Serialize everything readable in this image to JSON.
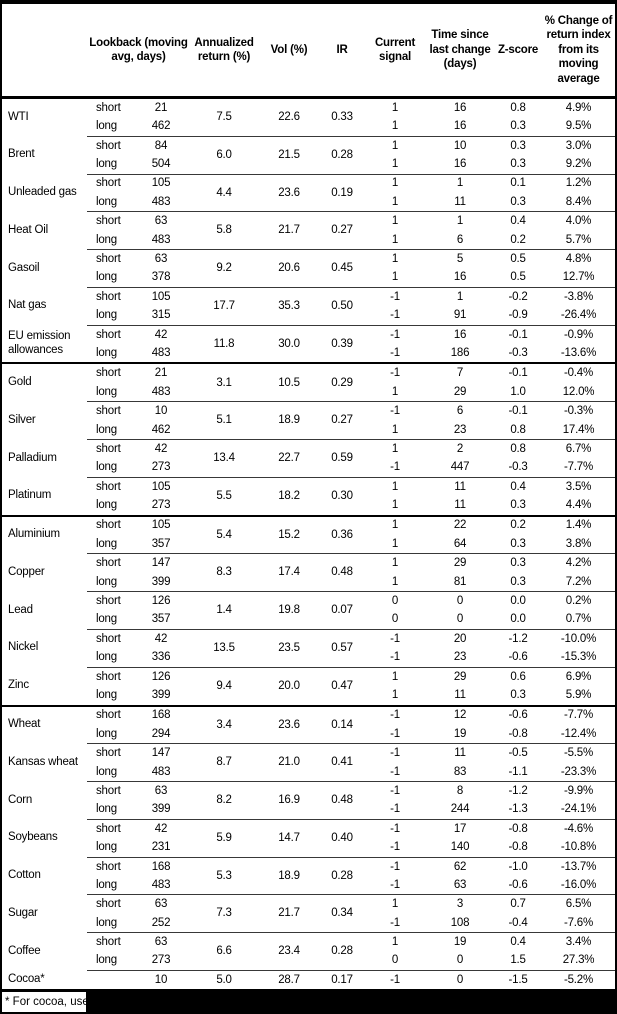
{
  "table": {
    "columns": [
      "",
      "Lookback (moving avg, days)",
      "Annualized return (%)",
      "Vol (%)",
      "IR",
      "Current signal",
      "Time since last change (days)",
      "Z-score",
      "% Change of return index from its moving average"
    ],
    "commodities": [
      {
        "name": "WTI",
        "group_start": false,
        "ann": "7.5",
        "vol": "22.6",
        "ir": "0.33",
        "legs": [
          {
            "pos": "short",
            "lookback": "21",
            "signal": "1",
            "time": "16",
            "z": "0.8",
            "pct": "4.9%"
          },
          {
            "pos": "long",
            "lookback": "462",
            "signal": "1",
            "time": "16",
            "z": "0.3",
            "pct": "9.5%"
          }
        ]
      },
      {
        "name": "Brent",
        "group_start": false,
        "ann": "6.0",
        "vol": "21.5",
        "ir": "0.28",
        "legs": [
          {
            "pos": "short",
            "lookback": "84",
            "signal": "1",
            "time": "10",
            "z": "0.3",
            "pct": "3.0%"
          },
          {
            "pos": "long",
            "lookback": "504",
            "signal": "1",
            "time": "16",
            "z": "0.3",
            "pct": "9.2%"
          }
        ]
      },
      {
        "name": "Unleaded gas",
        "group_start": false,
        "ann": "4.4",
        "vol": "23.6",
        "ir": "0.19",
        "legs": [
          {
            "pos": "short",
            "lookback": "105",
            "signal": "1",
            "time": "1",
            "z": "0.1",
            "pct": "1.2%"
          },
          {
            "pos": "long",
            "lookback": "483",
            "signal": "1",
            "time": "11",
            "z": "0.3",
            "pct": "8.4%"
          }
        ]
      },
      {
        "name": "Heat Oil",
        "group_start": false,
        "ann": "5.8",
        "vol": "21.7",
        "ir": "0.27",
        "legs": [
          {
            "pos": "short",
            "lookback": "63",
            "signal": "1",
            "time": "1",
            "z": "0.4",
            "pct": "4.0%"
          },
          {
            "pos": "long",
            "lookback": "483",
            "signal": "1",
            "time": "6",
            "z": "0.2",
            "pct": "5.7%"
          }
        ]
      },
      {
        "name": "Gasoil",
        "group_start": false,
        "ann": "9.2",
        "vol": "20.6",
        "ir": "0.45",
        "legs": [
          {
            "pos": "short",
            "lookback": "63",
            "signal": "1",
            "time": "5",
            "z": "0.5",
            "pct": "4.8%"
          },
          {
            "pos": "long",
            "lookback": "378",
            "signal": "1",
            "time": "16",
            "z": "0.5",
            "pct": "12.7%"
          }
        ]
      },
      {
        "name": "Nat gas",
        "group_start": false,
        "ann": "17.7",
        "vol": "35.3",
        "ir": "0.50",
        "legs": [
          {
            "pos": "short",
            "lookback": "105",
            "signal": "-1",
            "time": "1",
            "z": "-0.2",
            "pct": "-3.8%"
          },
          {
            "pos": "long",
            "lookback": "315",
            "signal": "-1",
            "time": "91",
            "z": "-0.9",
            "pct": "-26.4%"
          }
        ]
      },
      {
        "name": "EU emission allowances",
        "group_start": false,
        "ann": "11.8",
        "vol": "30.0",
        "ir": "0.39",
        "legs": [
          {
            "pos": "short",
            "lookback": "42",
            "signal": "-1",
            "time": "16",
            "z": "-0.1",
            "pct": "-0.9%"
          },
          {
            "pos": "long",
            "lookback": "483",
            "signal": "-1",
            "time": "186",
            "z": "-0.3",
            "pct": "-13.6%"
          }
        ]
      },
      {
        "name": "Gold",
        "group_start": true,
        "ann": "3.1",
        "vol": "10.5",
        "ir": "0.29",
        "legs": [
          {
            "pos": "short",
            "lookback": "21",
            "signal": "-1",
            "time": "7",
            "z": "-0.1",
            "pct": "-0.4%"
          },
          {
            "pos": "long",
            "lookback": "483",
            "signal": "1",
            "time": "29",
            "z": "1.0",
            "pct": "12.0%"
          }
        ]
      },
      {
        "name": "Silver",
        "group_start": false,
        "ann": "5.1",
        "vol": "18.9",
        "ir": "0.27",
        "legs": [
          {
            "pos": "short",
            "lookback": "10",
            "signal": "-1",
            "time": "6",
            "z": "-0.1",
            "pct": "-0.3%"
          },
          {
            "pos": "long",
            "lookback": "462",
            "signal": "1",
            "time": "23",
            "z": "0.8",
            "pct": "17.4%"
          }
        ]
      },
      {
        "name": "Palladium",
        "group_start": false,
        "ann": "13.4",
        "vol": "22.7",
        "ir": "0.59",
        "legs": [
          {
            "pos": "short",
            "lookback": "42",
            "signal": "1",
            "time": "2",
            "z": "0.8",
            "pct": "6.7%"
          },
          {
            "pos": "long",
            "lookback": "273",
            "signal": "-1",
            "time": "447",
            "z": "-0.3",
            "pct": "-7.7%"
          }
        ]
      },
      {
        "name": "Platinum",
        "group_start": false,
        "ann": "5.5",
        "vol": "18.2",
        "ir": "0.30",
        "legs": [
          {
            "pos": "short",
            "lookback": "105",
            "signal": "1",
            "time": "11",
            "z": "0.4",
            "pct": "3.5%"
          },
          {
            "pos": "long",
            "lookback": "273",
            "signal": "1",
            "time": "11",
            "z": "0.3",
            "pct": "4.4%"
          }
        ]
      },
      {
        "name": "Aluminium",
        "group_start": true,
        "ann": "5.4",
        "vol": "15.2",
        "ir": "0.36",
        "legs": [
          {
            "pos": "short",
            "lookback": "105",
            "signal": "1",
            "time": "22",
            "z": "0.2",
            "pct": "1.4%"
          },
          {
            "pos": "long",
            "lookback": "357",
            "signal": "1",
            "time": "64",
            "z": "0.3",
            "pct": "3.8%"
          }
        ]
      },
      {
        "name": "Copper",
        "group_start": false,
        "ann": "8.3",
        "vol": "17.4",
        "ir": "0.48",
        "legs": [
          {
            "pos": "short",
            "lookback": "147",
            "signal": "1",
            "time": "29",
            "z": "0.3",
            "pct": "4.2%"
          },
          {
            "pos": "long",
            "lookback": "399",
            "signal": "1",
            "time": "81",
            "z": "0.3",
            "pct": "7.2%"
          }
        ]
      },
      {
        "name": "Lead",
        "group_start": false,
        "ann": "1.4",
        "vol": "19.8",
        "ir": "0.07",
        "legs": [
          {
            "pos": "short",
            "lookback": "126",
            "signal": "0",
            "time": "0",
            "z": "0.0",
            "pct": "0.2%"
          },
          {
            "pos": "long",
            "lookback": "357",
            "signal": "0",
            "time": "0",
            "z": "0.0",
            "pct": "0.7%"
          }
        ]
      },
      {
        "name": "Nickel",
        "group_start": false,
        "ann": "13.5",
        "vol": "23.5",
        "ir": "0.57",
        "legs": [
          {
            "pos": "short",
            "lookback": "42",
            "signal": "-1",
            "time": "20",
            "z": "-1.2",
            "pct": "-10.0%"
          },
          {
            "pos": "long",
            "lookback": "336",
            "signal": "-1",
            "time": "23",
            "z": "-0.6",
            "pct": "-15.3%"
          }
        ]
      },
      {
        "name": "Zinc",
        "group_start": false,
        "ann": "9.4",
        "vol": "20.0",
        "ir": "0.47",
        "legs": [
          {
            "pos": "short",
            "lookback": "126",
            "signal": "1",
            "time": "29",
            "z": "0.6",
            "pct": "6.9%"
          },
          {
            "pos": "long",
            "lookback": "399",
            "signal": "1",
            "time": "11",
            "z": "0.3",
            "pct": "5.9%"
          }
        ]
      },
      {
        "name": "Wheat",
        "group_start": true,
        "ann": "3.4",
        "vol": "23.6",
        "ir": "0.14",
        "legs": [
          {
            "pos": "short",
            "lookback": "168",
            "signal": "-1",
            "time": "12",
            "z": "-0.6",
            "pct": "-7.7%"
          },
          {
            "pos": "long",
            "lookback": "294",
            "signal": "-1",
            "time": "19",
            "z": "-0.8",
            "pct": "-12.4%"
          }
        ]
      },
      {
        "name": "Kansas wheat",
        "group_start": false,
        "ann": "8.7",
        "vol": "21.0",
        "ir": "0.41",
        "legs": [
          {
            "pos": "short",
            "lookback": "147",
            "signal": "-1",
            "time": "11",
            "z": "-0.5",
            "pct": "-5.5%"
          },
          {
            "pos": "long",
            "lookback": "483",
            "signal": "-1",
            "time": "83",
            "z": "-1.1",
            "pct": "-23.3%"
          }
        ]
      },
      {
        "name": "Corn",
        "group_start": false,
        "ann": "8.2",
        "vol": "16.9",
        "ir": "0.48",
        "legs": [
          {
            "pos": "short",
            "lookback": "63",
            "signal": "-1",
            "time": "8",
            "z": "-1.2",
            "pct": "-9.9%"
          },
          {
            "pos": "long",
            "lookback": "399",
            "signal": "-1",
            "time": "244",
            "z": "-1.3",
            "pct": "-24.1%"
          }
        ]
      },
      {
        "name": "Soybeans",
        "group_start": false,
        "ann": "5.9",
        "vol": "14.7",
        "ir": "0.40",
        "legs": [
          {
            "pos": "short",
            "lookback": "42",
            "signal": "-1",
            "time": "17",
            "z": "-0.8",
            "pct": "-4.6%"
          },
          {
            "pos": "long",
            "lookback": "231",
            "signal": "-1",
            "time": "140",
            "z": "-0.8",
            "pct": "-10.8%"
          }
        ]
      },
      {
        "name": "Cotton",
        "group_start": false,
        "ann": "5.3",
        "vol": "18.9",
        "ir": "0.28",
        "legs": [
          {
            "pos": "short",
            "lookback": "168",
            "signal": "-1",
            "time": "62",
            "z": "-1.0",
            "pct": "-13.7%"
          },
          {
            "pos": "long",
            "lookback": "483",
            "signal": "-1",
            "time": "63",
            "z": "-0.6",
            "pct": "-16.0%"
          }
        ]
      },
      {
        "name": "Sugar",
        "group_start": false,
        "ann": "7.3",
        "vol": "21.7",
        "ir": "0.34",
        "legs": [
          {
            "pos": "short",
            "lookback": "63",
            "signal": "1",
            "time": "3",
            "z": "0.7",
            "pct": "6.5%"
          },
          {
            "pos": "long",
            "lookback": "252",
            "signal": "-1",
            "time": "108",
            "z": "-0.4",
            "pct": "-7.6%"
          }
        ]
      },
      {
        "name": "Coffee",
        "group_start": false,
        "ann": "6.6",
        "vol": "23.4",
        "ir": "0.28",
        "legs": [
          {
            "pos": "short",
            "lookback": "63",
            "signal": "1",
            "time": "19",
            "z": "0.4",
            "pct": "3.4%"
          },
          {
            "pos": "long",
            "lookback": "273",
            "signal": "0",
            "time": "0",
            "z": "1.5",
            "pct": "27.3%"
          }
        ]
      },
      {
        "name": "Cocoa*",
        "group_start": false,
        "ann": "5.0",
        "vol": "28.7",
        "ir": "0.17",
        "legs": [
          {
            "pos": "",
            "lookback": "10",
            "signal": "-1",
            "time": "0",
            "z": "-1.5",
            "pct": "-5.2%"
          }
        ]
      }
    ]
  },
  "footnote": {
    "text": "* For cocoa, uses",
    "redacted": true
  }
}
